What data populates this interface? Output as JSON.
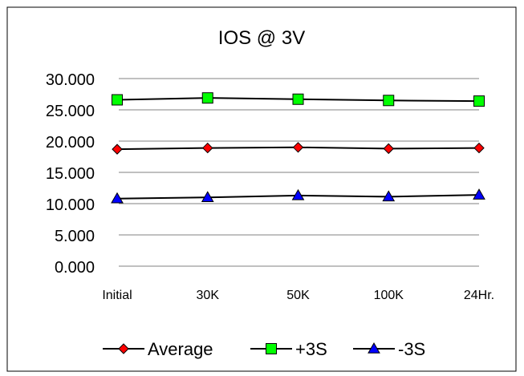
{
  "chart_data": {
    "type": "line",
    "title": "IOS @ 3V",
    "xlabel": "",
    "ylabel": "",
    "categories": [
      "Initial",
      "30K",
      "50K",
      "100K",
      "24Hr."
    ],
    "ylim": [
      0,
      30
    ],
    "yticks": [
      "0.000",
      "5.000",
      "10.000",
      "15.000",
      "20.000",
      "25.000",
      "30.000"
    ],
    "ytick_values": [
      0,
      5,
      10,
      15,
      20,
      25,
      30
    ],
    "grid": true,
    "legend_position": "bottom",
    "series": [
      {
        "name": "Average",
        "marker": "diamond",
        "color": "#ff0000",
        "values": [
          18.7,
          18.9,
          19.0,
          18.8,
          18.9
        ]
      },
      {
        "name": "+3S",
        "marker": "square",
        "color": "#00ff00",
        "values": [
          26.6,
          26.9,
          26.7,
          26.5,
          26.4
        ]
      },
      {
        "name": "-3S",
        "marker": "triangle",
        "color": "#0000ff",
        "values": [
          10.8,
          11.0,
          11.3,
          11.1,
          11.4
        ]
      }
    ]
  }
}
